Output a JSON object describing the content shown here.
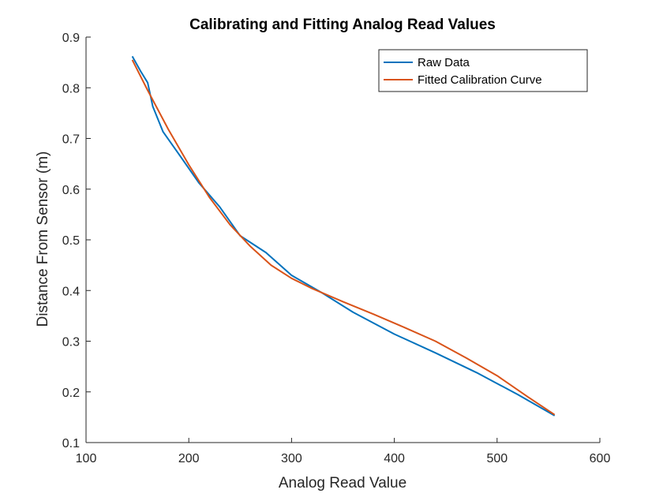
{
  "chart_data": {
    "type": "line",
    "title": "Calibrating and Fitting Analog Read Values",
    "xlabel": "Analog Read Value",
    "ylabel": "Distance From Sensor (m)",
    "xlim": [
      100,
      600
    ],
    "ylim": [
      0.1,
      0.9
    ],
    "xticks": [
      100,
      200,
      300,
      400,
      500,
      600
    ],
    "xtick_labels": [
      "100",
      "200",
      "300",
      "400",
      "500",
      "600"
    ],
    "yticks": [
      0.1,
      0.2,
      0.3,
      0.4,
      0.5,
      0.6,
      0.7,
      0.8,
      0.9
    ],
    "ytick_labels": [
      "0.1",
      "0.2",
      "0.3",
      "0.4",
      "0.5",
      "0.6",
      "0.7",
      "0.8",
      "0.9"
    ],
    "grid": false,
    "legend_position": "top-right",
    "series": [
      {
        "name": "Raw Data",
        "color": "#0072BD",
        "x": [
          145,
          153,
          160,
          165,
          175,
          190,
          210,
          230,
          250,
          275,
          300,
          330,
          360,
          400,
          440,
          480,
          520,
          556
        ],
        "y": [
          0.862,
          0.833,
          0.81,
          0.763,
          0.713,
          0.67,
          0.612,
          0.565,
          0.508,
          0.475,
          0.43,
          0.395,
          0.357,
          0.314,
          0.277,
          0.238,
          0.195,
          0.153
        ]
      },
      {
        "name": "Fitted Calibration Curve",
        "color": "#D95319",
        "x": [
          145,
          160,
          180,
          200,
          220,
          240,
          260,
          280,
          300,
          320,
          350,
          380,
          410,
          440,
          470,
          500,
          530,
          556
        ],
        "y": [
          0.855,
          0.795,
          0.718,
          0.648,
          0.584,
          0.53,
          0.487,
          0.45,
          0.424,
          0.404,
          0.378,
          0.353,
          0.327,
          0.3,
          0.267,
          0.232,
          0.19,
          0.155
        ]
      }
    ]
  }
}
